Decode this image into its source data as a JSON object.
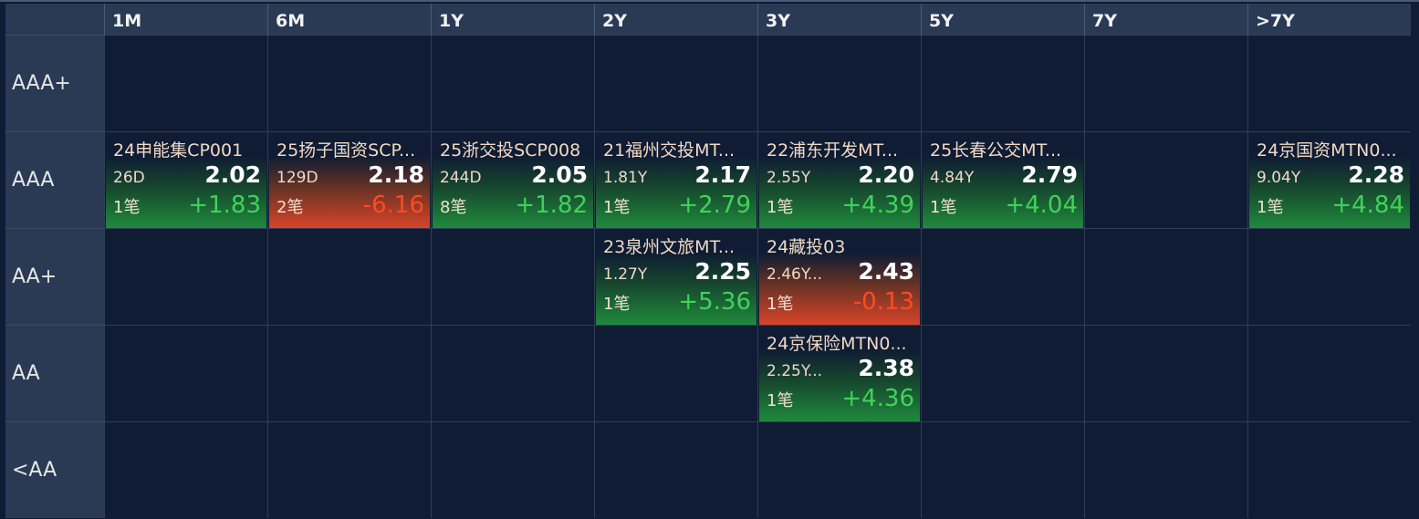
{
  "columns": [
    "1M",
    "6M",
    "1Y",
    "2Y",
    "3Y",
    "5Y",
    "7Y",
    ">7Y"
  ],
  "rows": [
    "AAA+",
    "AAA",
    "AA+",
    "AA",
    "<AA"
  ],
  "colors": {
    "up": "#41d25a",
    "down": "#ff4a24",
    "background": "#0f1c33",
    "header": "#2a3a55"
  },
  "cards": [
    {
      "row": "AAA",
      "col": "1M",
      "name": "24申能集CP001",
      "term": "26D",
      "yield": "2.02",
      "count": "1笔",
      "change": "+1.83",
      "direction": "up"
    },
    {
      "row": "AAA",
      "col": "6M",
      "name": "25扬子国资SCP...",
      "term": "129D",
      "yield": "2.18",
      "count": "2笔",
      "change": "-6.16",
      "direction": "down"
    },
    {
      "row": "AAA",
      "col": "1Y",
      "name": "25浙交投SCP008",
      "term": "244D",
      "yield": "2.05",
      "count": "8笔",
      "change": "+1.82",
      "direction": "up"
    },
    {
      "row": "AAA",
      "col": "2Y",
      "name": "21福州交投MT...",
      "term": "1.81Y",
      "yield": "2.17",
      "count": "1笔",
      "change": "+2.79",
      "direction": "up"
    },
    {
      "row": "AAA",
      "col": "3Y",
      "name": "22浦东开发MT...",
      "term": "2.55Y",
      "yield": "2.20",
      "count": "1笔",
      "change": "+4.39",
      "direction": "up"
    },
    {
      "row": "AAA",
      "col": "5Y",
      "name": "25长春公交MT...",
      "term": "4.84Y",
      "yield": "2.79",
      "count": "1笔",
      "change": "+4.04",
      "direction": "up"
    },
    {
      "row": "AAA",
      "col": ">7Y",
      "name": "24京国资MTN0...",
      "term": "9.04Y",
      "yield": "2.28",
      "count": "1笔",
      "change": "+4.84",
      "direction": "up"
    },
    {
      "row": "AA+",
      "col": "2Y",
      "name": "23泉州文旅MT...",
      "term": "1.27Y",
      "yield": "2.25",
      "count": "1笔",
      "change": "+5.36",
      "direction": "up"
    },
    {
      "row": "AA+",
      "col": "3Y",
      "name": "24藏投03",
      "term": "2.46Y...",
      "yield": "2.43",
      "count": "1笔",
      "change": "-0.13",
      "direction": "down"
    },
    {
      "row": "AA",
      "col": "3Y",
      "name": "24京保险MTN0...",
      "term": "2.25Y...",
      "yield": "2.38",
      "count": "1笔",
      "change": "+4.36",
      "direction": "up"
    }
  ]
}
